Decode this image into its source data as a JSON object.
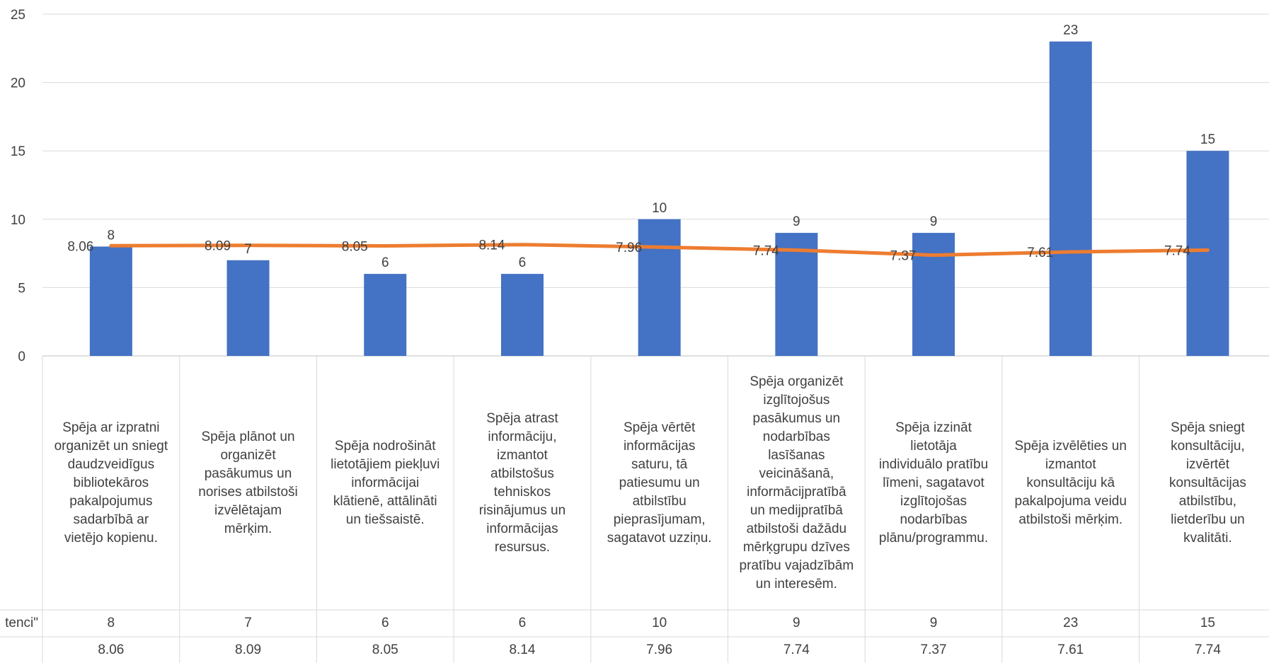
{
  "chart_data": {
    "type": "bar",
    "ylim": [
      0,
      25
    ],
    "yticks": [
      "0",
      "5",
      "10",
      "15",
      "20",
      "25"
    ],
    "categories": [
      "Spēja ar izpratni organizēt un sniegt daudzveidīgus bibliotekāros pakalpojumus sadarbībā ar vietējo kopienu.",
      "Spēja plānot un organizēt pasākumus un norises atbilstoši izvēlētajam mērķim.",
      "Spēja nodrošināt lietotājiem piekļuvi informācijai klātienē, attālināti un tiešsaistē.",
      "Spēja atrast informāciju, izmantot atbilstošus tehniskos risinājumus un informācijas resursus.",
      "Spēja vērtēt informācijas saturu, tā patiesumu un atbilstību pieprasījumam, sagatavot uzziņu.",
      "Spēja organizēt izglītojošus pasākumus un nodarbības lasīšanas veicināšanā, informācijpratībā un medijpratībā atbilstoši dažādu mērķgrupu dzīves pratību vajadzībām un interesēm.",
      "Spēja izzināt lietotāja individuālo pratību līmeni, sagatavot izglītojošas nodarbības plānu/programmu.",
      "Spēja izvēlēties un izmantot konsultāciju kā pakalpojuma veidu atbilstoši mērķim.",
      "Spēja sniegt konsultāciju, izvērtēt konsultācijas atbilstību, lietderību un kvalitāti."
    ],
    "category_lines": [
      [
        "Spēja ar izpratni",
        "organizēt un sniegt",
        "daudzveidīgus",
        "bibliotekāros",
        "pakalpojumus",
        "sadarbībā ar",
        "vietējo kopienu."
      ],
      [
        "Spēja plānot un",
        "organizēt",
        "pasākumus un",
        "norises atbilstoši",
        "izvēlētajam",
        "mērķim."
      ],
      [
        "Spēja nodrošināt",
        "lietotājiem piekļuvi",
        "informācijai",
        "klātienē, attālināti",
        "un tiešsaistē."
      ],
      [
        "Spēja atrast",
        "informāciju,",
        "izmantot",
        "atbilstošus",
        "tehniskos",
        "risinājumus un",
        "informācijas",
        "resursus."
      ],
      [
        "Spēja vērtēt",
        "informācijas",
        "saturu, tā",
        "patiesumu un",
        "atbilstību",
        "pieprasījumam,",
        "sagatavot uzziņu."
      ],
      [
        "Spēja organizēt",
        "izglītojošus",
        "pasākumus un",
        "nodarbības",
        "lasīšanas",
        "veicināšanā,",
        "informācijpratībā",
        "un medijpratībā",
        "atbilstoši dažādu",
        "mērķgrupu dzīves",
        "pratību vajadzībām",
        "un interesēm."
      ],
      [
        "Spēja izzināt",
        "lietotāja",
        "individuālo pratību",
        "līmeni, sagatavot",
        "izglītojošas",
        "nodarbības",
        "plānu/programmu."
      ],
      [
        "Spēja izvēlēties un",
        "izmantot",
        "konsultāciju kā",
        "pakalpojuma veidu",
        "atbilstoši mērķim."
      ],
      [
        "Spēja sniegt",
        "konsultāciju,",
        "izvērtēt",
        "konsultācijas",
        "atbilstību,",
        "lietderību un",
        "kvalitāti."
      ]
    ],
    "series": [
      {
        "type": "bar",
        "row_label": "tenci\"",
        "color": "#4472C4",
        "values": [
          8,
          7,
          6,
          6,
          10,
          9,
          9,
          23,
          15
        ],
        "labels": [
          "8",
          "7",
          "6",
          "6",
          "10",
          "9",
          "9",
          "23",
          "15"
        ]
      },
      {
        "type": "line",
        "color": "#ED7D31",
        "values": [
          8.06,
          8.09,
          8.05,
          8.14,
          7.96,
          7.74,
          7.37,
          7.61,
          7.74
        ],
        "labels": [
          "8.06",
          "8.09",
          "8.05",
          "8.14",
          "7.96",
          "7.74",
          "7.37",
          "7.61",
          "7.74"
        ]
      }
    ],
    "grid": true,
    "data_table": true
  }
}
